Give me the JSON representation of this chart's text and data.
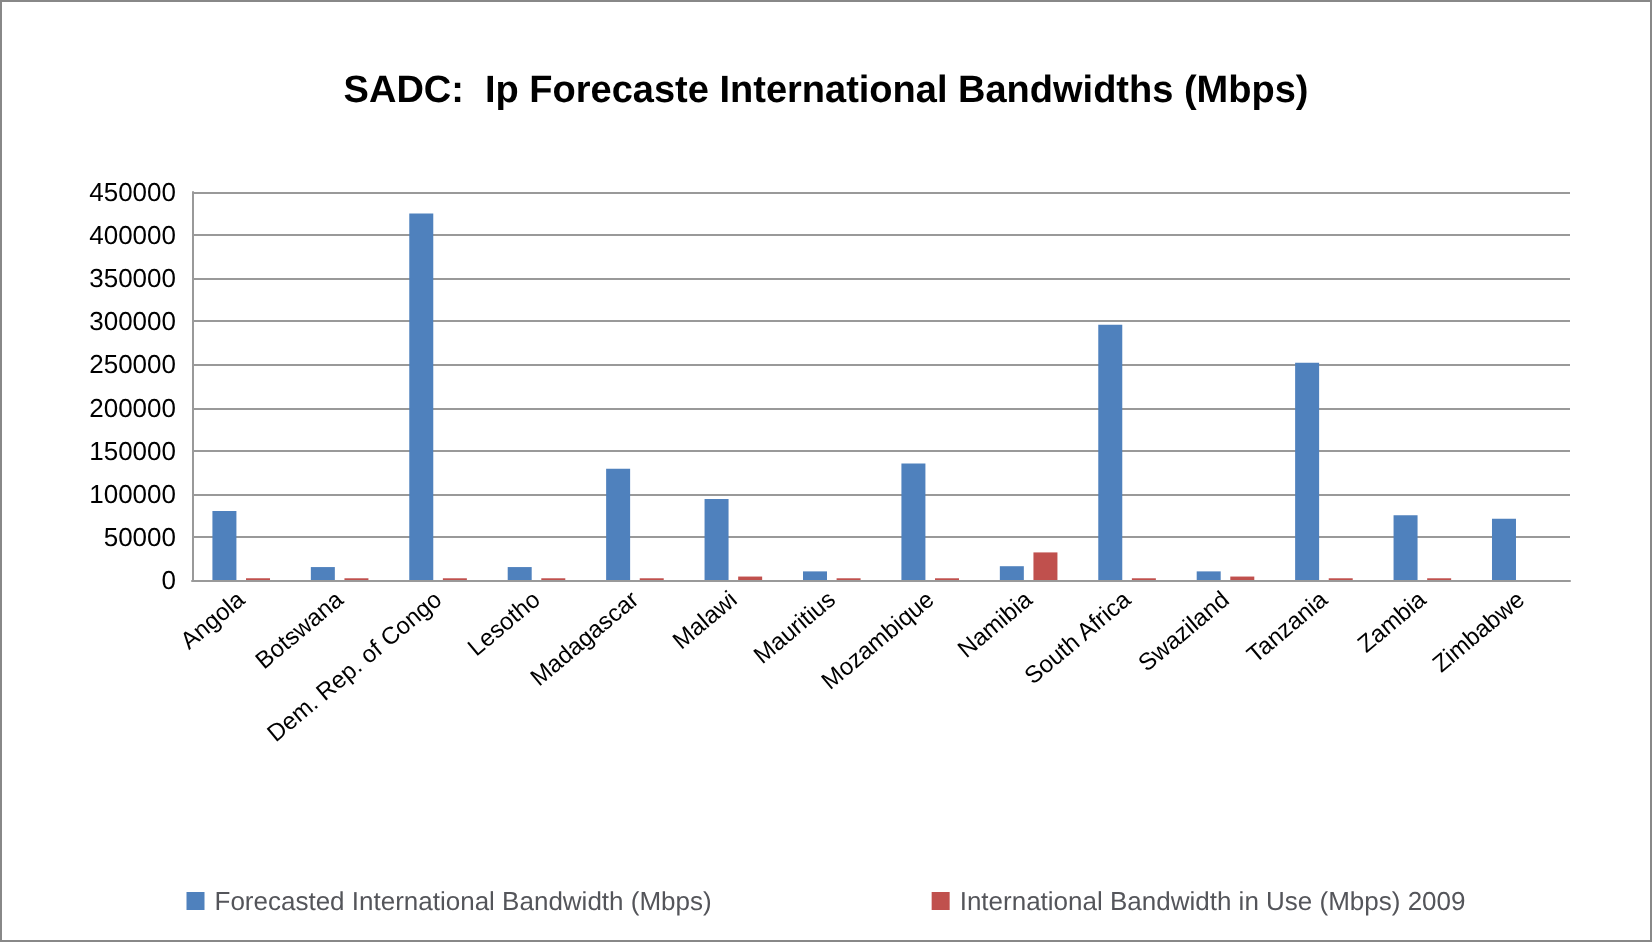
{
  "chart_data": {
    "type": "bar",
    "title": "SADC:  Ip Forecaste International Bandwidths (Mbps)",
    "categories": [
      "Angola",
      "Botswana",
      "Dem. Rep. of Congo",
      "Lesotho",
      "Madagascar",
      "Malawi",
      "Mauritius",
      "Mozambique",
      "Namibia",
      "South Africa",
      "Swaziland",
      "Tanzania",
      "Zambia",
      "Zimbabwe"
    ],
    "series": [
      {
        "name": "Forecasted International Bandwidth (Mbps)",
        "color": "#4f81bd",
        "values": [
          80000,
          15000,
          425000,
          15000,
          129000,
          94000,
          10000,
          135000,
          16000,
          296000,
          10000,
          252000,
          75000,
          71000
        ]
      },
      {
        "name": "International Bandwidth in Use (Mbps) 2009",
        "color": "#c0504d",
        "values": [
          2000,
          2000,
          2000,
          2000,
          2000,
          4000,
          2000,
          2000,
          32000,
          2000,
          4000,
          2000,
          2000,
          null
        ]
      }
    ],
    "ylim": [
      0,
      450000
    ],
    "yticks": [
      0,
      50000,
      100000,
      150000,
      200000,
      250000,
      300000,
      350000,
      400000,
      450000
    ],
    "grid": "y",
    "legend": "bottom"
  }
}
